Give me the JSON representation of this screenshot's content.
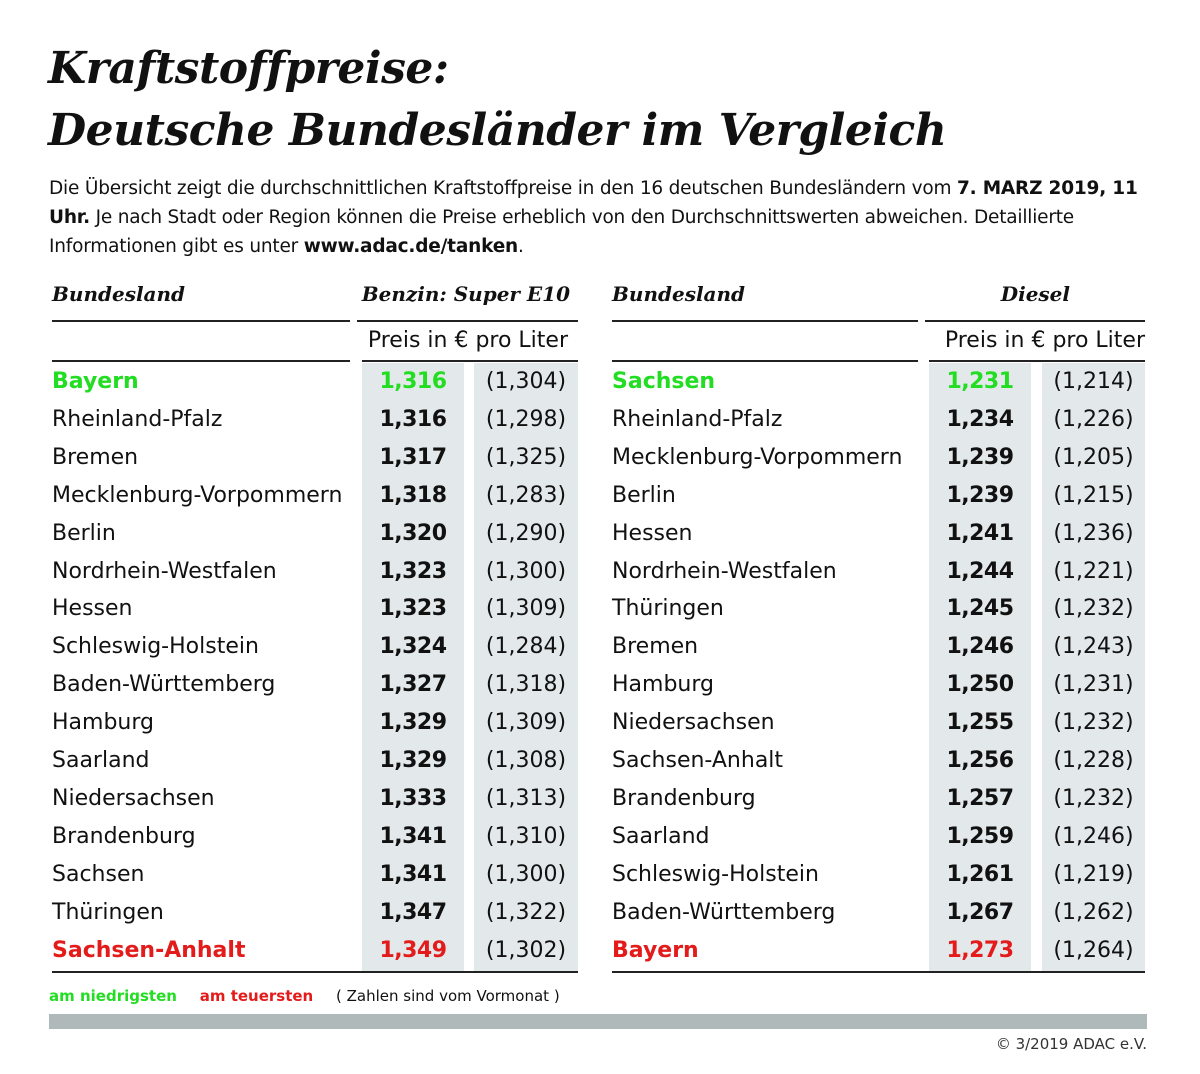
{
  "title_line1": "Kraftstoffpreise:",
  "title_line2": "Deutsche Bundesländer im Vergleich",
  "intro": {
    "part1": "Die Übersicht zeigt die durchschnittlichen Kraftstoffpreise in den 16 deutschen Bundesländern vom ",
    "date_bold": "7. MARZ 2019, 11 Uhr.",
    "part2": " Je nach Stadt oder Region können die Preise erheblich von den Durchschnittswerten abweichen. Detaillierte Informationen gibt es unter ",
    "link": "www.adac.de/tanken",
    "part3": "."
  },
  "colors": {
    "lowest": "#22dd22",
    "highest": "#e31b1b",
    "cell_bg": "#e3e9ea",
    "bar": "#b0b9ba"
  },
  "legend": {
    "lowest": "am niedrigsten",
    "highest": "am teuersten",
    "note": "( Zahlen sind vom Vormonat )"
  },
  "copyright": "© 3/2019 ADAC e.V.",
  "chart_data": [
    {
      "type": "table",
      "col_header_name": "Bundesland",
      "col_header_fuel": "Benzin:  Super E10",
      "unit": "Preis in € pro Liter",
      "rows": [
        {
          "name": "Bayern",
          "price": "1,316",
          "prev": "(1,304)",
          "mark": "lowest"
        },
        {
          "name": "Rheinland-Pfalz",
          "price": "1,316",
          "prev": "(1,298)"
        },
        {
          "name": "Bremen",
          "price": "1,317",
          "prev": "(1,325)"
        },
        {
          "name": "Mecklenburg-Vorpommern",
          "price": "1,318",
          "prev": "(1,283)"
        },
        {
          "name": "Berlin",
          "price": "1,320",
          "prev": "(1,290)"
        },
        {
          "name": "Nordrhein-Westfalen",
          "price": "1,323",
          "prev": "(1,300)"
        },
        {
          "name": "Hessen",
          "price": "1,323",
          "prev": "(1,309)"
        },
        {
          "name": "Schleswig-Holstein",
          "price": "1,324",
          "prev": "(1,284)"
        },
        {
          "name": "Baden-Württemberg",
          "price": "1,327",
          "prev": "(1,318)"
        },
        {
          "name": "Hamburg",
          "price": "1,329",
          "prev": "(1,309)"
        },
        {
          "name": "Saarland",
          "price": "1,329",
          "prev": "(1,308)"
        },
        {
          "name": "Niedersachsen",
          "price": "1,333",
          "prev": "(1,313)"
        },
        {
          "name": "Brandenburg",
          "price": "1,341",
          "prev": "(1,310)"
        },
        {
          "name": "Sachsen",
          "price": "1,341",
          "prev": "(1,300)"
        },
        {
          "name": "Thüringen",
          "price": "1,347",
          "prev": "(1,322)"
        },
        {
          "name": "Sachsen-Anhalt",
          "price": "1,349",
          "prev": "(1,302)",
          "mark": "highest"
        }
      ]
    },
    {
      "type": "table",
      "col_header_name": "Bundesland",
      "col_header_fuel": "Diesel",
      "unit": "Preis in € pro Liter",
      "rows": [
        {
          "name": "Sachsen",
          "price": "1,231",
          "prev": "(1,214)",
          "mark": "lowest"
        },
        {
          "name": "Rheinland-Pfalz",
          "price": "1,234",
          "prev": "(1,226)"
        },
        {
          "name": "Mecklenburg-Vorpommern",
          "price": "1,239",
          "prev": "(1,205)"
        },
        {
          "name": "Berlin",
          "price": "1,239",
          "prev": "(1,215)"
        },
        {
          "name": "Hessen",
          "price": "1,241",
          "prev": "(1,236)"
        },
        {
          "name": "Nordrhein-Westfalen",
          "price": "1,244",
          "prev": "(1,221)"
        },
        {
          "name": "Thüringen",
          "price": "1,245",
          "prev": "(1,232)"
        },
        {
          "name": "Bremen",
          "price": "1,246",
          "prev": "(1,243)"
        },
        {
          "name": "Hamburg",
          "price": "1,250",
          "prev": "(1,231)"
        },
        {
          "name": "Niedersachsen",
          "price": "1,255",
          "prev": "(1,232)"
        },
        {
          "name": "Sachsen-Anhalt",
          "price": "1,256",
          "prev": "(1,228)"
        },
        {
          "name": "Brandenburg",
          "price": "1,257",
          "prev": "(1,232)"
        },
        {
          "name": "Saarland",
          "price": "1,259",
          "prev": "(1,246)"
        },
        {
          "name": "Schleswig-Holstein",
          "price": "1,261",
          "prev": "(1,219)"
        },
        {
          "name": "Baden-Württemberg",
          "price": "1,267",
          "prev": "(1,262)"
        },
        {
          "name": "Bayern",
          "price": "1,273",
          "prev": "(1,264)",
          "mark": "highest"
        }
      ]
    }
  ]
}
